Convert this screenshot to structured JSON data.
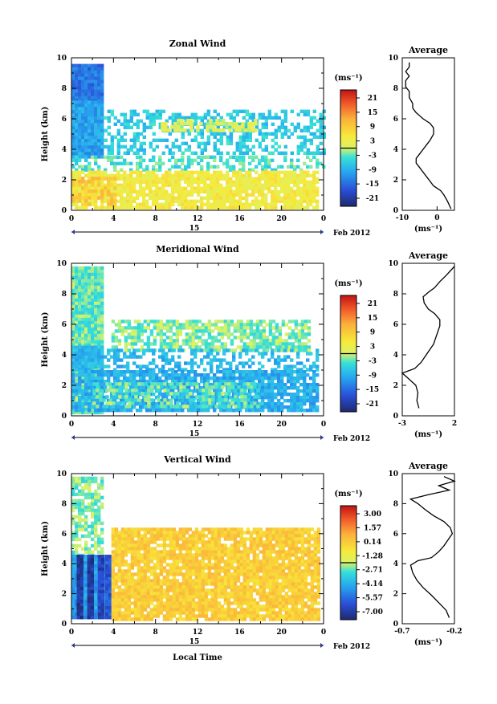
{
  "date_label": "Feb 2012",
  "day_label": "15",
  "x_title": "Local Time",
  "y_title": "Height (km)",
  "x_ticks": [
    "0",
    "4",
    "8",
    "12",
    "16",
    "20",
    "0"
  ],
  "y_ticks": [
    "0",
    "2",
    "4",
    "6",
    "8",
    "10"
  ],
  "unit_label": "(ms⁻¹)",
  "avg_title": "Average",
  "chart_data": [
    {
      "type": "heatmap",
      "title": "Zonal Wind",
      "x_range_hours": [
        0,
        24
      ],
      "ylim": [
        0,
        10
      ],
      "colorbar": {
        "ticks": [
          "21",
          "15",
          "9",
          "3",
          "-3",
          "-9",
          "-15",
          "-21"
        ],
        "range": [
          -24,
          24
        ]
      },
      "regions": [
        {
          "x": [
            0,
            2.8
          ],
          "y": [
            7.2,
            9.6
          ],
          "v": -14
        },
        {
          "x": [
            0,
            2.8
          ],
          "y": [
            3.6,
            7.2
          ],
          "v": -10
        },
        {
          "x": [
            2.8,
            24
          ],
          "y": [
            3.8,
            6.6
          ],
          "v": -6,
          "density": 0.45
        },
        {
          "x": [
            8.5,
            17.5
          ],
          "y": [
            5.2,
            6.0
          ],
          "v": 1,
          "density": 0.6
        },
        {
          "x": [
            0,
            24
          ],
          "y": [
            2.6,
            3.6
          ],
          "v": -4,
          "density": 0.5
        },
        {
          "x": [
            0,
            23.5
          ],
          "y": [
            0.1,
            2.6
          ],
          "v": 4,
          "density": 0.85
        },
        {
          "x": [
            0,
            4
          ],
          "y": [
            0.4,
            2.2
          ],
          "v": 9,
          "density": 0.6
        }
      ],
      "average": {
        "xlim": [
          -10,
          5
        ],
        "xticks": [
          "-10",
          "0"
        ],
        "profile": [
          [
            4,
            0.1
          ],
          [
            3,
            0.6
          ],
          [
            2,
            1.0
          ],
          [
            1,
            1.3
          ],
          [
            -1,
            1.6
          ],
          [
            -2,
            1.9
          ],
          [
            -3,
            2.2
          ],
          [
            -4,
            2.5
          ],
          [
            -5,
            2.8
          ],
          [
            -6,
            3.1
          ],
          [
            -6,
            3.4
          ],
          [
            -5,
            3.7
          ],
          [
            -4,
            4.0
          ],
          [
            -3,
            4.3
          ],
          [
            -2,
            4.6
          ],
          [
            -1,
            5.0
          ],
          [
            -1,
            5.4
          ],
          [
            -2,
            5.7
          ],
          [
            -4,
            6.0
          ],
          [
            -5,
            6.2
          ],
          [
            -6,
            6.4
          ],
          [
            -7,
            6.7
          ],
          [
            -7,
            7.0
          ],
          [
            -8,
            7.4
          ],
          [
            -8,
            7.8
          ],
          [
            -9,
            8.1
          ],
          [
            -9,
            8.5
          ],
          [
            -8,
            8.8
          ],
          [
            -9,
            9.1
          ],
          [
            -8,
            9.4
          ],
          [
            -8,
            9.7
          ]
        ]
      }
    },
    {
      "type": "heatmap",
      "title": "Meridional Wind",
      "x_range_hours": [
        0,
        24
      ],
      "ylim": [
        0,
        10
      ],
      "colorbar": {
        "ticks": [
          "21",
          "15",
          "9",
          "3",
          "-3",
          "-9",
          "-15",
          "-21"
        ],
        "range": [
          -24,
          24
        ]
      },
      "regions": [
        {
          "x": [
            0,
            2.8
          ],
          "y": [
            0.2,
            9.8
          ],
          "v": -3
        },
        {
          "x": [
            0,
            2.8
          ],
          "y": [
            3.2,
            4.6
          ],
          "v": -8
        },
        {
          "x": [
            3.8,
            22.5
          ],
          "y": [
            4.4,
            6.3
          ],
          "v": -2,
          "density": 0.7
        },
        {
          "x": [
            0,
            23.5
          ],
          "y": [
            3.0,
            4.4
          ],
          "v": -8,
          "density": 0.45
        },
        {
          "x": [
            0,
            23.5
          ],
          "y": [
            0.3,
            3.0
          ],
          "v": -9,
          "density": 0.85
        },
        {
          "x": [
            2,
            18
          ],
          "y": [
            0.6,
            2.2
          ],
          "v": -3,
          "density": 0.5
        }
      ],
      "average": {
        "xlim": [
          -3,
          2
        ],
        "xticks": [
          "-3",
          "2"
        ],
        "profile": [
          [
            -1.4,
            0.5
          ],
          [
            -1.6,
            1.0
          ],
          [
            -1.5,
            1.5
          ],
          [
            -1.7,
            2.0
          ],
          [
            -2.5,
            2.5
          ],
          [
            -3.0,
            2.8
          ],
          [
            -1.8,
            3.1
          ],
          [
            -1.2,
            3.5
          ],
          [
            -0.8,
            3.9
          ],
          [
            -0.4,
            4.3
          ],
          [
            0.0,
            4.7
          ],
          [
            0.2,
            5.1
          ],
          [
            0.4,
            5.5
          ],
          [
            0.6,
            5.9
          ],
          [
            0.6,
            6.3
          ],
          [
            0.1,
            6.7
          ],
          [
            -0.5,
            7.0
          ],
          [
            -0.9,
            7.4
          ],
          [
            -1.0,
            7.8
          ],
          [
            -0.5,
            8.1
          ],
          [
            0.1,
            8.4
          ],
          [
            0.6,
            8.8
          ],
          [
            1.2,
            9.2
          ],
          [
            1.6,
            9.5
          ],
          [
            2.0,
            9.8
          ]
        ]
      }
    },
    {
      "type": "heatmap",
      "title": "Vertical Wind",
      "x_range_hours": [
        0,
        24
      ],
      "ylim": [
        0,
        10
      ],
      "colorbar": {
        "ticks": [
          "3.00",
          "1.57",
          "0.14",
          "-1.28",
          "-2.71",
          "-4.14",
          "-5.57",
          "-7.00"
        ],
        "range": [
          -7.7,
          3.7
        ]
      },
      "regions": [
        {
          "x": [
            0,
            2.8
          ],
          "y": [
            4.6,
            9.8
          ],
          "v": -2.5,
          "density": 0.7
        },
        {
          "x": [
            0,
            3.8
          ],
          "y": [
            0.5,
            4.6
          ],
          "v": -4.5
        },
        {
          "x": [
            0.5,
            0.9
          ],
          "y": [
            0.5,
            4.6
          ],
          "v": -7.0
        },
        {
          "x": [
            1.5,
            1.9
          ],
          "y": [
            0.5,
            4.6
          ],
          "v": -7.0
        },
        {
          "x": [
            2.5,
            2.9
          ],
          "y": [
            0.5,
            4.6
          ],
          "v": -6.5
        },
        {
          "x": [
            3.2,
            3.6
          ],
          "y": [
            0.5,
            4.6
          ],
          "v": -6.0
        },
        {
          "x": [
            3.8,
            23.5
          ],
          "y": [
            0.4,
            6.4
          ],
          "v": 0.0,
          "density": 0.9
        }
      ],
      "average": {
        "xlim": [
          -0.7,
          -0.2
        ],
        "xticks": [
          "-0.7",
          "-0.2"
        ],
        "profile": [
          [
            -0.25,
            0.4
          ],
          [
            -0.28,
            0.9
          ],
          [
            -0.35,
            1.4
          ],
          [
            -0.42,
            1.9
          ],
          [
            -0.5,
            2.4
          ],
          [
            -0.56,
            2.9
          ],
          [
            -0.6,
            3.4
          ],
          [
            -0.62,
            3.9
          ],
          [
            -0.55,
            4.2
          ],
          [
            -0.42,
            4.4
          ],
          [
            -0.35,
            4.8
          ],
          [
            -0.3,
            5.2
          ],
          [
            -0.26,
            5.6
          ],
          [
            -0.22,
            6.0
          ],
          [
            -0.24,
            6.4
          ],
          [
            -0.3,
            6.8
          ],
          [
            -0.4,
            7.2
          ],
          [
            -0.48,
            7.6
          ],
          [
            -0.55,
            8.0
          ],
          [
            -0.62,
            8.3
          ],
          [
            -0.45,
            8.6
          ],
          [
            -0.25,
            8.9
          ],
          [
            -0.35,
            9.2
          ],
          [
            -0.2,
            9.5
          ],
          [
            -0.3,
            9.8
          ]
        ]
      }
    }
  ]
}
